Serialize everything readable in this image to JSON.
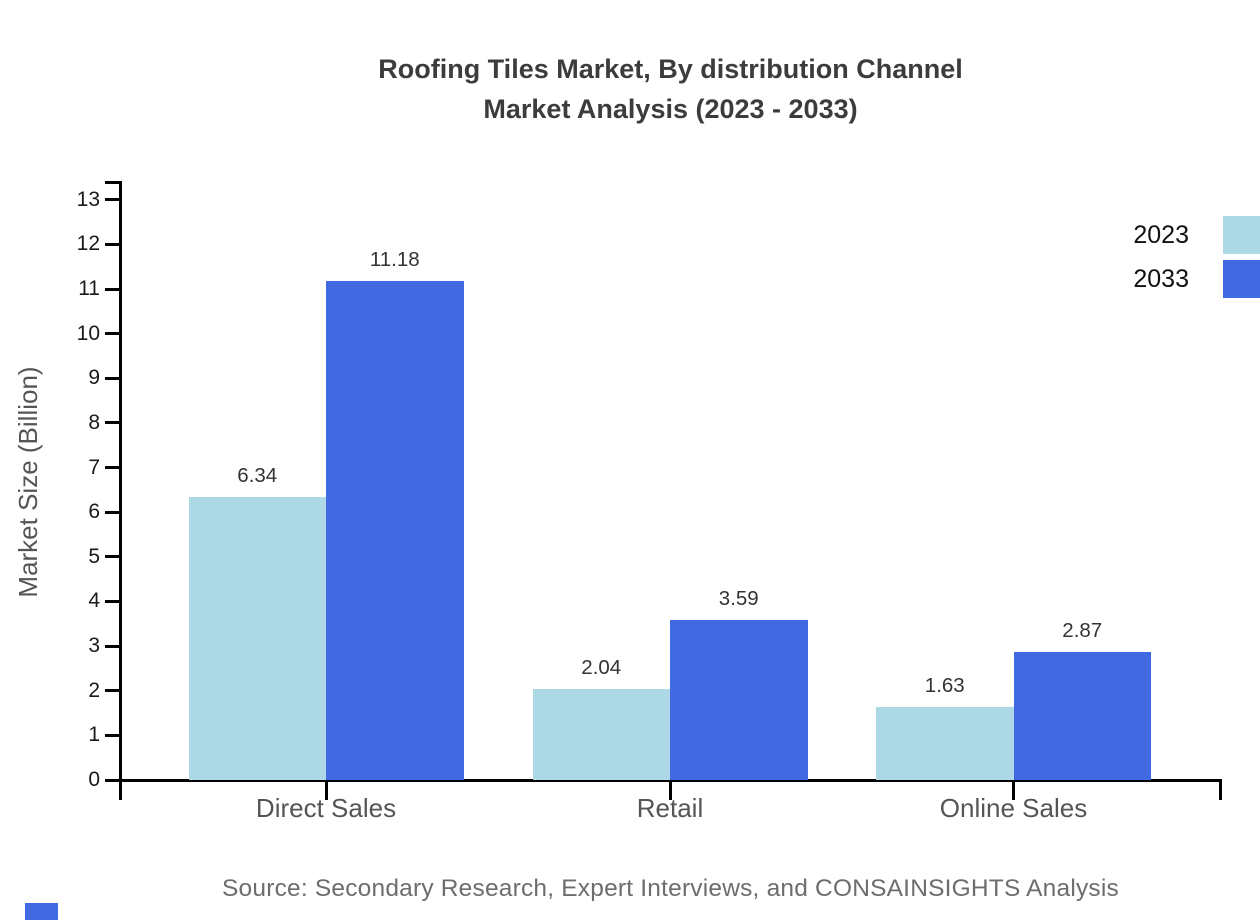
{
  "header": {
    "title_line1": "Roofing Tiles Market, By distribution Channel",
    "title_line2": "Market Analysis (2023 - 2033)"
  },
  "chart_data": {
    "type": "bar",
    "title": "Roofing Tiles Market, By distribution Channel Market Analysis (2023 - 2033)",
    "categories": [
      "Direct Sales",
      "Retail",
      "Online Sales"
    ],
    "series": [
      {
        "name": "2023",
        "color": "#ADD8E6",
        "values": [
          6.34,
          2.04,
          1.63
        ]
      },
      {
        "name": "2033",
        "color": "#4169E1",
        "values": [
          11.18,
          3.59,
          2.87
        ]
      }
    ],
    "xlabel": "",
    "ylabel": "Market Size (Billion)",
    "ylim": [
      0,
      13.42
    ],
    "yticks": [
      0,
      1,
      2,
      3,
      4,
      5,
      6,
      7,
      8,
      9,
      10,
      11,
      12,
      13
    ],
    "grid": false,
    "legend_position": "top-right",
    "value_labels": true,
    "source": "Source: Secondary Research, Expert Interviews, and CONSAINSIGHTS Analysis"
  },
  "colors": {
    "series_2023": "#ADD8E6",
    "series_2033": "#4169E1",
    "title_text": "#3c3c3c",
    "axis": "#000000",
    "tick_label": "#1a1a1a",
    "category_label": "#555555",
    "source_text": "#6d6d6d",
    "brand_mark": "#4169E1"
  }
}
